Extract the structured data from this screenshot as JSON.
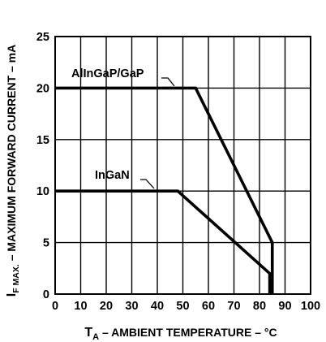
{
  "chart_data": {
    "type": "line",
    "title": "",
    "xlabel": {
      "prefix": "T",
      "subscript": "A",
      "text": " – AMBIENT TEMPERATURE – °C"
    },
    "ylabel": {
      "prefix": "I",
      "subscript": "F MAX.",
      "text": " – MAXIMUM FORWARD CURRENT – mA"
    },
    "xlim": [
      0,
      100
    ],
    "ylim": [
      0,
      25
    ],
    "xticks": [
      "0",
      "10",
      "20",
      "30",
      "40",
      "50",
      "60",
      "70",
      "80",
      "90",
      "100"
    ],
    "yticks": [
      "0",
      "5",
      "10",
      "15",
      "20",
      "25"
    ],
    "grid": true,
    "series": [
      {
        "name": "AlInGaP/GaP",
        "points": [
          [
            0,
            20
          ],
          [
            55,
            20
          ],
          [
            85,
            5
          ],
          [
            85,
            0
          ]
        ]
      },
      {
        "name": "InGaN",
        "points": [
          [
            0,
            10
          ],
          [
            48,
            10
          ],
          [
            84,
            2
          ],
          [
            84,
            0
          ]
        ]
      }
    ]
  }
}
